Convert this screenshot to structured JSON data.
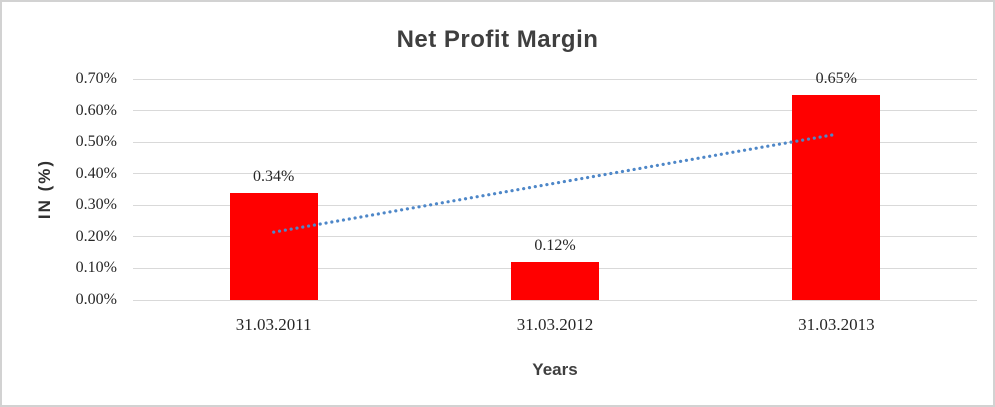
{
  "window": {
    "background": "#FFFFFF",
    "border_color": "#D2D2D2"
  },
  "chart_data": {
    "type": "bar",
    "title": "Net Profit Margin",
    "xlabel": "Years",
    "ylabel": "IN (%)",
    "categories": [
      "31.03.2011",
      "31.03.2012",
      "31.03.2013"
    ],
    "values": [
      0.34,
      0.12,
      0.65
    ],
    "data_labels": [
      "0.34%",
      "0.12%",
      "0.65%"
    ],
    "ylim": [
      0,
      0.7
    ],
    "ytick_step": 0.1,
    "ytick_labels": [
      "0.00%",
      "0.10%",
      "0.20%",
      "0.30%",
      "0.40%",
      "0.50%",
      "0.60%",
      "0.70%"
    ],
    "grid": true,
    "legend": "none",
    "bar_color": "#FF0000",
    "gridline_color": "#D9D9D9",
    "title_color": "#3F3F3F",
    "tick_label_color": "#262626",
    "trendline": {
      "type": "linear",
      "style": "dotted",
      "color": "#4E87C8",
      "start_value": 0.215,
      "end_value": 0.525
    }
  }
}
